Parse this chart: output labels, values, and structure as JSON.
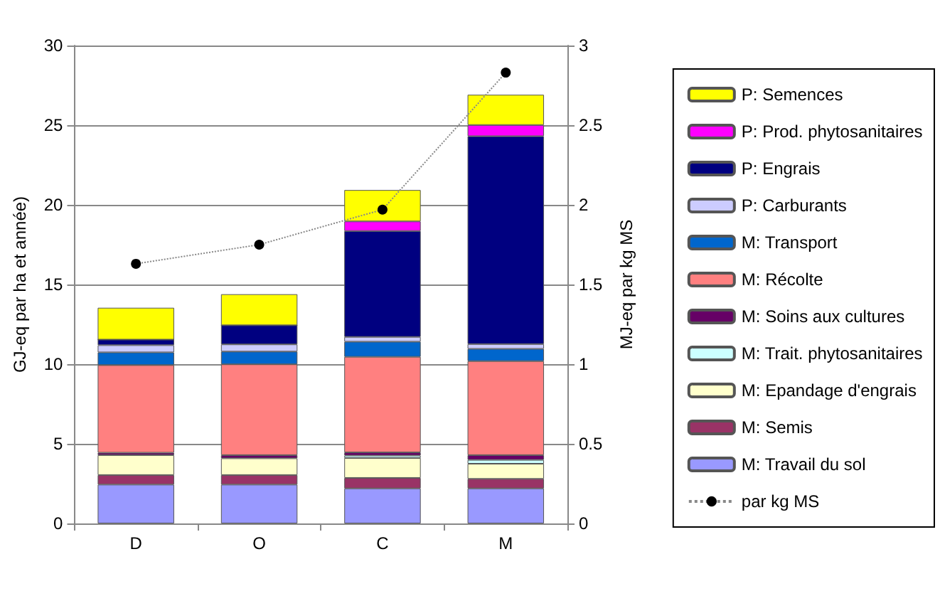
{
  "chart_data": {
    "type": "bar",
    "stacked": true,
    "categories": [
      "D",
      "O",
      "C",
      "M"
    ],
    "ylabel": "GJ-eq par ha et année)",
    "y2label": "MJ-eq par kg MS",
    "ylim": [
      0,
      30
    ],
    "yticks": [
      0,
      5,
      10,
      15,
      20,
      25,
      30
    ],
    "y2lim": [
      0,
      3
    ],
    "y2ticks": [
      0,
      0.5,
      1,
      1.5,
      2,
      2.5,
      3
    ],
    "grid": "y",
    "legend": "right",
    "series": [
      {
        "name": "M: Travail du sol",
        "color": "#9999ff",
        "values": [
          2.44,
          2.44,
          2.2,
          2.2
        ]
      },
      {
        "name": "M: Semis",
        "color": "#993366",
        "values": [
          0.6,
          0.6,
          0.66,
          0.6
        ]
      },
      {
        "name": "M: Epandage d'engrais",
        "color": "#ffffcc",
        "values": [
          1.25,
          1.05,
          1.25,
          0.95
        ]
      },
      {
        "name": "M: Trait. phytosanitaires",
        "color": "#ccffff",
        "values": [
          null,
          null,
          0.15,
          0.24
        ]
      },
      {
        "name": "M: Soins aux cultures",
        "color": "#660066",
        "values": [
          0.15,
          0.2,
          0.2,
          0.3
        ]
      },
      {
        "name": "M: Récolte",
        "color": "#ff8080",
        "values": [
          5.5,
          5.7,
          6.0,
          5.9
        ]
      },
      {
        "name": "M: Transport",
        "color": "#0066cc",
        "values": [
          0.8,
          0.8,
          0.95,
          0.77
        ]
      },
      {
        "name": "P: Carburants",
        "color": "#ccccff",
        "values": [
          0.45,
          0.45,
          0.3,
          0.3
        ]
      },
      {
        "name": "P: Engrais",
        "color": "#000080",
        "values": [
          0.35,
          1.2,
          6.65,
          13.05
        ]
      },
      {
        "name": "P: Prod. phytosanitaires",
        "color": "#ff00ff",
        "values": [
          0,
          0,
          0.6,
          0.7
        ]
      },
      {
        "name": "P: Semences",
        "color": "#ffff00",
        "values": [
          2.0,
          1.95,
          1.97,
          1.9
        ]
      },
      {
        "name": "par kg MS",
        "type": "line",
        "axis": "y2",
        "color": "#000000",
        "marker": "circle",
        "line_style": "dotted",
        "values": [
          1.63,
          1.75,
          1.97,
          2.83
        ]
      }
    ]
  }
}
